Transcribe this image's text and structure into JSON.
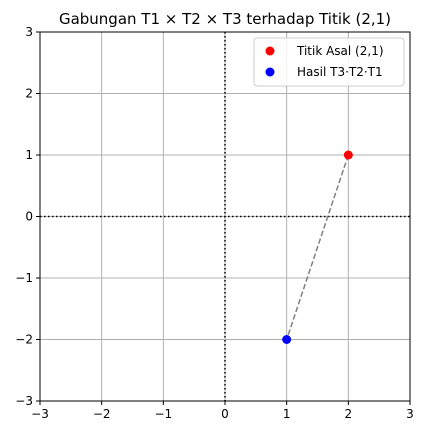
{
  "chart_data": {
    "type": "scatter",
    "title": "Gabungan T1 × T2 × T3 terhadap Titik (2,1)",
    "xlabel": "",
    "ylabel": "",
    "xlim": [
      -3,
      3
    ],
    "ylim": [
      -3,
      3
    ],
    "x_ticks": [
      -3,
      -2,
      -1,
      0,
      1,
      2,
      3
    ],
    "y_ticks": [
      -3,
      -2,
      -1,
      0,
      1,
      2,
      3
    ],
    "x_tick_labels": [
      "−3",
      "−2",
      "−1",
      "0",
      "1",
      "2",
      "3"
    ],
    "y_tick_labels": [
      "−3",
      "−2",
      "−1",
      "0",
      "1",
      "2",
      "3"
    ],
    "grid": true,
    "axis_lines": {
      "x": 0,
      "y": 0,
      "style": "dotted",
      "color": "#000000"
    },
    "legend_position": "top-right",
    "series": [
      {
        "name": "Titik Asal (2,1)",
        "color": "#ff0000",
        "points": [
          {
            "x": 2,
            "y": 1
          }
        ]
      },
      {
        "name": "Hasil T3·T2·T1",
        "color": "#0000ff",
        "points": [
          {
            "x": 1,
            "y": -2
          }
        ]
      }
    ],
    "connector": {
      "from": {
        "x": 2,
        "y": 1
      },
      "to": {
        "x": 1,
        "y": -2
      },
      "style": "dashed",
      "color": "#808080"
    }
  }
}
